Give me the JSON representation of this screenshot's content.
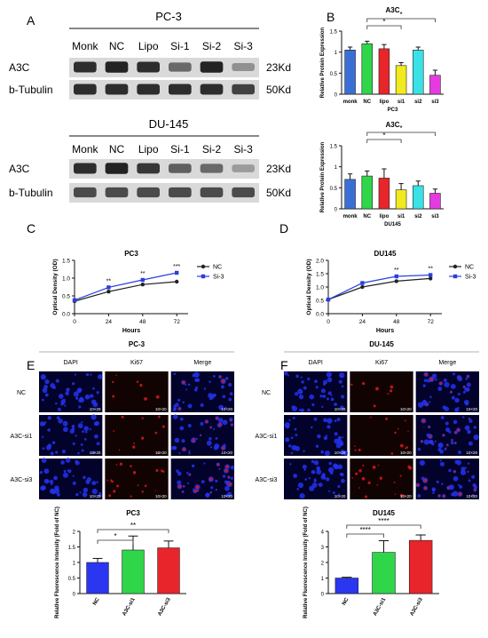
{
  "panels": {
    "A": "A",
    "B": "B",
    "C": "C",
    "D": "D",
    "E": "E",
    "F": "F"
  },
  "blot_pc3": {
    "title": "PC-3",
    "lanes": [
      "Monk",
      "NC",
      "Lipo",
      "Si-1",
      "Si-2",
      "Si-3"
    ],
    "rows": [
      {
        "label": "A3C",
        "kd": "23Kd",
        "intensity": [
          0.85,
          0.9,
          0.85,
          0.55,
          0.9,
          0.35
        ]
      },
      {
        "label": "b-Tubulin",
        "kd": "50Kd",
        "intensity": [
          0.85,
          0.85,
          0.85,
          0.85,
          0.85,
          0.75
        ]
      }
    ]
  },
  "blot_du145": {
    "title": "DU-145",
    "lanes": [
      "Monk",
      "NC",
      "Lipo",
      "Si-1",
      "Si-2",
      "Si-3"
    ],
    "rows": [
      {
        "label": "A3C",
        "kd": "23Kd",
        "intensity": [
          0.85,
          0.9,
          0.8,
          0.6,
          0.55,
          0.3
        ]
      },
      {
        "label": "b-Tubulin",
        "kd": "50Kd",
        "intensity": [
          0.7,
          0.7,
          0.7,
          0.7,
          0.7,
          0.7
        ]
      }
    ]
  },
  "if_pc3": {
    "title": "PC-3",
    "columns": [
      "DAPI",
      "Ki67",
      "Merge"
    ],
    "rows": [
      "NC",
      "A3C-si1",
      "A3C-si3"
    ],
    "scale": "10×20"
  },
  "if_du145": {
    "title": "DU-145",
    "columns": [
      "DAPI",
      "Ki67",
      "Merge"
    ],
    "rows": [
      "NC",
      "A3C-si1",
      "A3C-si3"
    ],
    "scale": "10×20"
  },
  "chart_data": [
    {
      "id": "B1",
      "type": "bar",
      "title": "A3C",
      "xlabel": "PC3",
      "ylabel": "Relative Protein Expression",
      "ylim": [
        0,
        1.5
      ],
      "yticks": [
        0.0,
        0.5,
        1.0,
        1.5
      ],
      "categories": [
        "monk",
        "NC",
        "lipo",
        "si1",
        "si2",
        "si3"
      ],
      "values": [
        1.05,
        1.2,
        1.08,
        0.68,
        1.05,
        0.45
      ],
      "errors": [
        0.07,
        0.06,
        0.1,
        0.07,
        0.07,
        0.12
      ],
      "colors": [
        "#3a6fd6",
        "#2fd64a",
        "#e8252a",
        "#f0ea1f",
        "#39e2e6",
        "#e53ae0"
      ],
      "significance": [
        {
          "from": 1,
          "to": 3,
          "label": "*"
        },
        {
          "from": 1,
          "to": 5,
          "label": "*"
        }
      ]
    },
    {
      "id": "B2",
      "type": "bar",
      "title": "A3C",
      "xlabel": "DU145",
      "ylabel": "Relative Protein Expression",
      "ylim": [
        0,
        1.5
      ],
      "yticks": [
        0.0,
        0.5,
        1.0,
        1.5
      ],
      "categories": [
        "monk",
        "NC",
        "lipo",
        "si1",
        "si2",
        "si3"
      ],
      "values": [
        0.7,
        0.78,
        0.73,
        0.45,
        0.55,
        0.37
      ],
      "errors": [
        0.13,
        0.12,
        0.22,
        0.15,
        0.11,
        0.1
      ],
      "colors": [
        "#3a6fd6",
        "#2fd64a",
        "#e8252a",
        "#f0ea1f",
        "#39e2e6",
        "#e53ae0"
      ],
      "significance": [
        {
          "from": 1,
          "to": 3,
          "label": "*"
        },
        {
          "from": 1,
          "to": 5,
          "label": "*"
        }
      ]
    },
    {
      "id": "C",
      "type": "line",
      "title": "PC3",
      "xlabel": "Hours",
      "ylabel": "Optical Density (OD)",
      "x": [
        0,
        24,
        48,
        72
      ],
      "xlim": [
        0,
        80
      ],
      "ylim": [
        0,
        1.5
      ],
      "yticks": [
        0.0,
        0.5,
        1.0,
        1.5
      ],
      "series": [
        {
          "name": "NC",
          "values": [
            0.35,
            0.62,
            0.82,
            0.9
          ],
          "color": "#222222"
        },
        {
          "name": "Si-3",
          "values": [
            0.38,
            0.74,
            0.95,
            1.15
          ],
          "color": "#2b3ee0"
        }
      ],
      "marks": [
        {
          "x": 24,
          "label": "**"
        },
        {
          "x": 48,
          "label": "**"
        },
        {
          "x": 72,
          "label": "***"
        }
      ],
      "legend": "top-right"
    },
    {
      "id": "D",
      "type": "line",
      "title": "DU145",
      "xlabel": "Hours",
      "ylabel": "Optical Density (OD)",
      "x": [
        0,
        24,
        48,
        72
      ],
      "xlim": [
        0,
        80
      ],
      "ylim": [
        0,
        2.0
      ],
      "yticks": [
        0.0,
        0.5,
        1.0,
        1.5,
        2.0
      ],
      "series": [
        {
          "name": "NC",
          "values": [
            0.53,
            1.0,
            1.22,
            1.32
          ],
          "color": "#222222"
        },
        {
          "name": "Si-3",
          "values": [
            0.53,
            1.15,
            1.4,
            1.45
          ],
          "color": "#2b3ee0"
        }
      ],
      "marks": [
        {
          "x": 48,
          "label": "**"
        },
        {
          "x": 72,
          "label": "**"
        }
      ],
      "legend": "top-right"
    },
    {
      "id": "E",
      "type": "bar",
      "title": "PC3",
      "xlabel": "",
      "ylabel": "Relative Fluorescence Intensity (Fold of NC)",
      "ylim": [
        0,
        2.0
      ],
      "yticks": [
        0.0,
        0.5,
        1.0,
        1.5,
        2.0
      ],
      "categories": [
        "NC",
        "A3C-si1",
        "A3C-si3"
      ],
      "values": [
        1.0,
        1.4,
        1.47
      ],
      "errors": [
        0.13,
        0.45,
        0.22
      ],
      "colors": [
        "#2b36f0",
        "#2fd64a",
        "#e8252a"
      ],
      "significance": [
        {
          "from": 0,
          "to": 1,
          "label": "*"
        },
        {
          "from": 0,
          "to": 2,
          "label": "**"
        }
      ]
    },
    {
      "id": "F",
      "type": "bar",
      "title": "DU145",
      "xlabel": "",
      "ylabel": "Relative Fluorescence Intensity (Fold of NC)",
      "ylim": [
        0,
        4
      ],
      "yticks": [
        0,
        1,
        2,
        3,
        4
      ],
      "categories": [
        "NC",
        "A3C-si1",
        "A3C-si3"
      ],
      "values": [
        1.0,
        2.65,
        3.42
      ],
      "errors": [
        0.05,
        0.75,
        0.35
      ],
      "colors": [
        "#2b36f0",
        "#2fd64a",
        "#e8252a"
      ],
      "significance": [
        {
          "from": 0,
          "to": 1,
          "label": "****"
        },
        {
          "from": 0,
          "to": 2,
          "label": "****"
        }
      ]
    }
  ]
}
